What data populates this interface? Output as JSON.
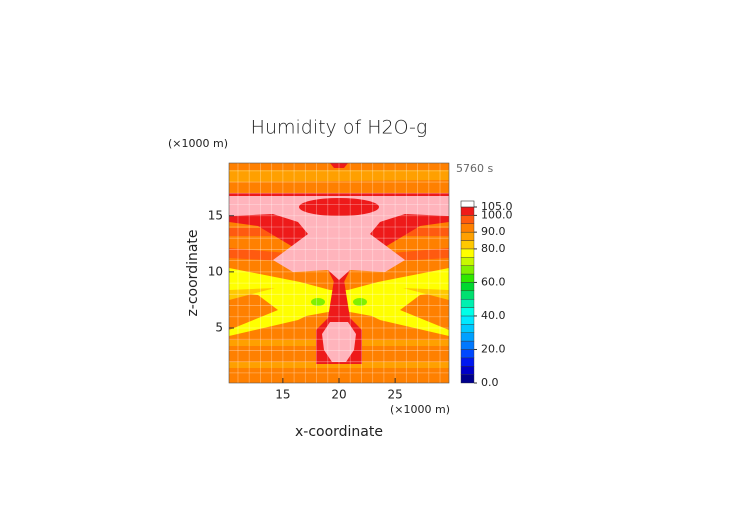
{
  "chart_data": {
    "type": "contour",
    "title": "Humidity of H2O-g",
    "x_label": "x-coordinate",
    "y_label": "z-coordinate",
    "x_unit": "(×1000 m)",
    "y_unit": "(×1000 m)",
    "time_label": "5760 s",
    "xlim": [
      10.2,
      29.8
    ],
    "ylim": [
      0.1,
      19.7
    ],
    "xticks": [
      15,
      20,
      25
    ],
    "yticks": [
      5,
      10,
      15
    ],
    "grid": true,
    "levels": [
      0,
      5,
      10,
      15,
      20,
      25,
      30,
      35,
      40,
      45,
      50,
      55,
      60,
      65,
      70,
      75,
      80,
      85,
      90,
      95,
      100,
      105
    ],
    "colors": [
      "#00008c",
      "#0000c8",
      "#0018f0",
      "#0048ff",
      "#0078ff",
      "#00a0ff",
      "#00c8ff",
      "#00e8ff",
      "#00ffe8",
      "#00f0b0",
      "#00e070",
      "#00d830",
      "#30e800",
      "#80f000",
      "#c8f800",
      "#ffff00",
      "#ffc800",
      "#ffa000",
      "#ff8000",
      "#ff5a10",
      "#ee1a1a"
    ],
    "over_color": "#ffb4bc",
    "colorbar_ticks": [
      {
        "value": 0,
        "label": "0.0"
      },
      {
        "value": 20,
        "label": "20.0"
      },
      {
        "value": 40,
        "label": "40.0"
      },
      {
        "value": 60,
        "label": "60.0"
      },
      {
        "value": 80,
        "label": "80.0"
      },
      {
        "value": 90,
        "label": "90.0"
      },
      {
        "value": 100,
        "label": "100.0"
      },
      {
        "value": 105,
        "label": "105.0"
      }
    ]
  }
}
